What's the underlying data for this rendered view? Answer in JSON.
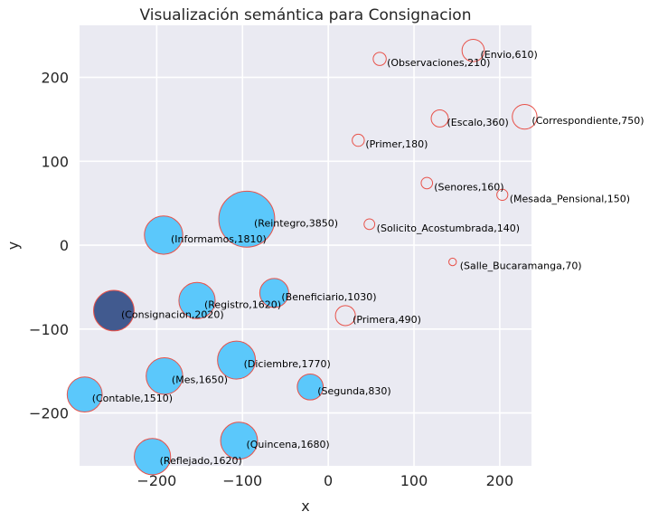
{
  "chart_data": {
    "type": "scatter",
    "title": "Visualización semántica para Consignacion",
    "xlabel": "x",
    "ylabel": "y",
    "xlim": [
      -290,
      237
    ],
    "ylim": [
      -263,
      262
    ],
    "xticks": [
      -200,
      -100,
      0,
      100,
      200
    ],
    "yticks": [
      -200,
      -100,
      0,
      100,
      200
    ],
    "xtick_labels": [
      "−200",
      "−100",
      "0",
      "100",
      "200"
    ],
    "ytick_labels": [
      "−200",
      "−100",
      "0",
      "100",
      "200"
    ],
    "grid": true,
    "colors": {
      "background": "#eaeaf2",
      "grid": "#ffffff",
      "fill": "#5bc8fb",
      "highlight": "#415a8f",
      "edge": "#e8524a"
    },
    "points": [
      {
        "word": "Reintegro",
        "count": 3850,
        "x": -95,
        "y": 31,
        "filled": true,
        "highlight": false,
        "label": "(Reintegro,3850)"
      },
      {
        "word": "Consignacion",
        "count": 2020,
        "x": -250,
        "y": -78,
        "filled": true,
        "highlight": true,
        "label": "(Consignacion,2020)"
      },
      {
        "word": "Informamos",
        "count": 1810,
        "x": -192,
        "y": 12,
        "filled": true,
        "highlight": false,
        "label": "(Informamos,1810)"
      },
      {
        "word": "Diciembre",
        "count": 1770,
        "x": -107,
        "y": -137,
        "filled": true,
        "highlight": false,
        "label": "(Diciembre,1770)"
      },
      {
        "word": "Quincena",
        "count": 1680,
        "x": -104,
        "y": -233,
        "filled": true,
        "highlight": false,
        "label": "(Quincena,1680)"
      },
      {
        "word": "Mes",
        "count": 1650,
        "x": -191,
        "y": -156,
        "filled": true,
        "highlight": false,
        "label": "(Mes,1650)"
      },
      {
        "word": "Registro",
        "count": 1620,
        "x": -153,
        "y": -66,
        "filled": true,
        "highlight": false,
        "label": "(Registro,1620)"
      },
      {
        "word": "Reflejado",
        "count": 1620,
        "x": -205,
        "y": -252,
        "filled": true,
        "highlight": false,
        "label": "(Reflejado,1620)"
      },
      {
        "word": "Contable",
        "count": 1510,
        "x": -284,
        "y": -178,
        "filled": true,
        "highlight": false,
        "label": "(Contable,1510)"
      },
      {
        "word": "Beneficiario",
        "count": 1030,
        "x": -63,
        "y": -57,
        "filled": true,
        "highlight": false,
        "label": "(Beneficiario,1030)"
      },
      {
        "word": "Segunda",
        "count": 830,
        "x": -21,
        "y": -169,
        "filled": true,
        "highlight": false,
        "label": "(Segunda,830)"
      },
      {
        "word": "Correspondiente",
        "count": 750,
        "x": 229,
        "y": 153,
        "filled": false,
        "highlight": false,
        "label": "(Correspondiente,750)"
      },
      {
        "word": "Envio",
        "count": 610,
        "x": 169,
        "y": 232,
        "filled": false,
        "highlight": false,
        "label": "(Envio,610)"
      },
      {
        "word": "Primera",
        "count": 490,
        "x": 20,
        "y": -84,
        "filled": false,
        "highlight": false,
        "label": "(Primera,490)"
      },
      {
        "word": "Escalo",
        "count": 360,
        "x": 130,
        "y": 151,
        "filled": false,
        "highlight": false,
        "label": "(Escalo,360)"
      },
      {
        "word": "Observaciones",
        "count": 210,
        "x": 60,
        "y": 222,
        "filled": false,
        "highlight": false,
        "label": "(Observaciones,210)"
      },
      {
        "word": "Primer",
        "count": 180,
        "x": 35,
        "y": 125,
        "filled": false,
        "highlight": false,
        "label": "(Primer,180)"
      },
      {
        "word": "Senores",
        "count": 160,
        "x": 115,
        "y": 74,
        "filled": false,
        "highlight": false,
        "label": "(Senores,160)"
      },
      {
        "word": "Mesada_Pensional",
        "count": 150,
        "x": 203,
        "y": 60,
        "filled": false,
        "highlight": false,
        "label": "(Mesada_Pensional,150)"
      },
      {
        "word": "Solicito_Acostumbrada",
        "count": 140,
        "x": 48,
        "y": 25,
        "filled": false,
        "highlight": false,
        "label": "(Solicito_Acostumbrada,140)"
      },
      {
        "word": "Salle_Bucaramanga",
        "count": 70,
        "x": 145,
        "y": -20,
        "filled": false,
        "highlight": false,
        "label": "(Salle_Bucaramanga,70)"
      }
    ]
  }
}
